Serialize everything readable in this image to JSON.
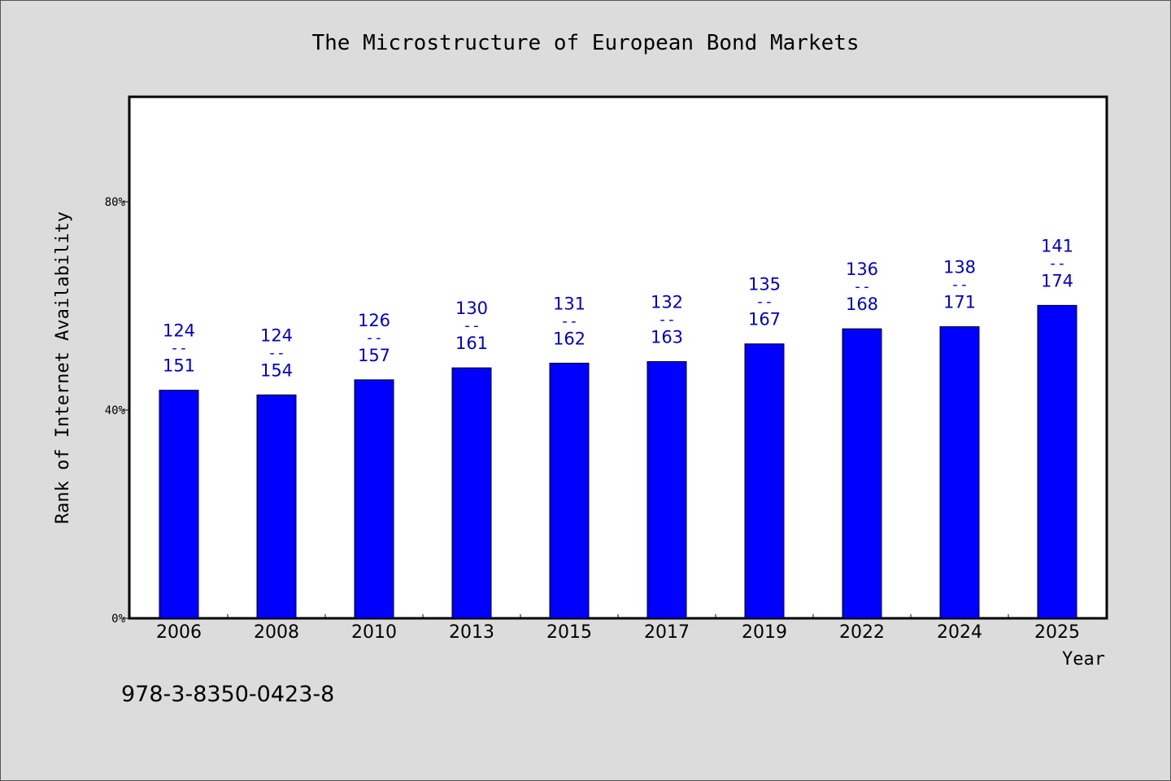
{
  "chart_data": {
    "type": "bar",
    "title": "The Microstructure of European Bond Markets",
    "xlabel": "Year",
    "ylabel": "Rank of Internet Availability",
    "categories": [
      "2006",
      "2008",
      "2010",
      "2013",
      "2015",
      "2017",
      "2019",
      "2022",
      "2024",
      "2025"
    ],
    "values": [
      43.8,
      42.9,
      45.8,
      48.1,
      49.0,
      49.3,
      52.7,
      55.6,
      56.0,
      60.1
    ],
    "value_unit": "%",
    "bar_labels": [
      {
        "top": "124",
        "sep": "--",
        "bottom": "151"
      },
      {
        "top": "124",
        "sep": "--",
        "bottom": "154"
      },
      {
        "top": "126",
        "sep": "--",
        "bottom": "157"
      },
      {
        "top": "130",
        "sep": "--",
        "bottom": "161"
      },
      {
        "top": "131",
        "sep": "--",
        "bottom": "162"
      },
      {
        "top": "132",
        "sep": "--",
        "bottom": "163"
      },
      {
        "top": "135",
        "sep": "--",
        "bottom": "167"
      },
      {
        "top": "136",
        "sep": "--",
        "bottom": "168"
      },
      {
        "top": "138",
        "sep": "--",
        "bottom": "171"
      },
      {
        "top": "141",
        "sep": "--",
        "bottom": "174"
      }
    ],
    "ylim": [
      0,
      100
    ],
    "yticks": [
      {
        "value": 0,
        "label": "0%"
      },
      {
        "value": 40,
        "label": "40%"
      },
      {
        "value": 80,
        "label": "80%"
      }
    ],
    "grid": false,
    "colors": {
      "bar": "#0000ff",
      "label": "#0000cc",
      "plot_bg": "#ffffff",
      "page_bg": "#dcdcdc"
    }
  },
  "footer": {
    "isbn": "978-3-8350-0423-8"
  }
}
